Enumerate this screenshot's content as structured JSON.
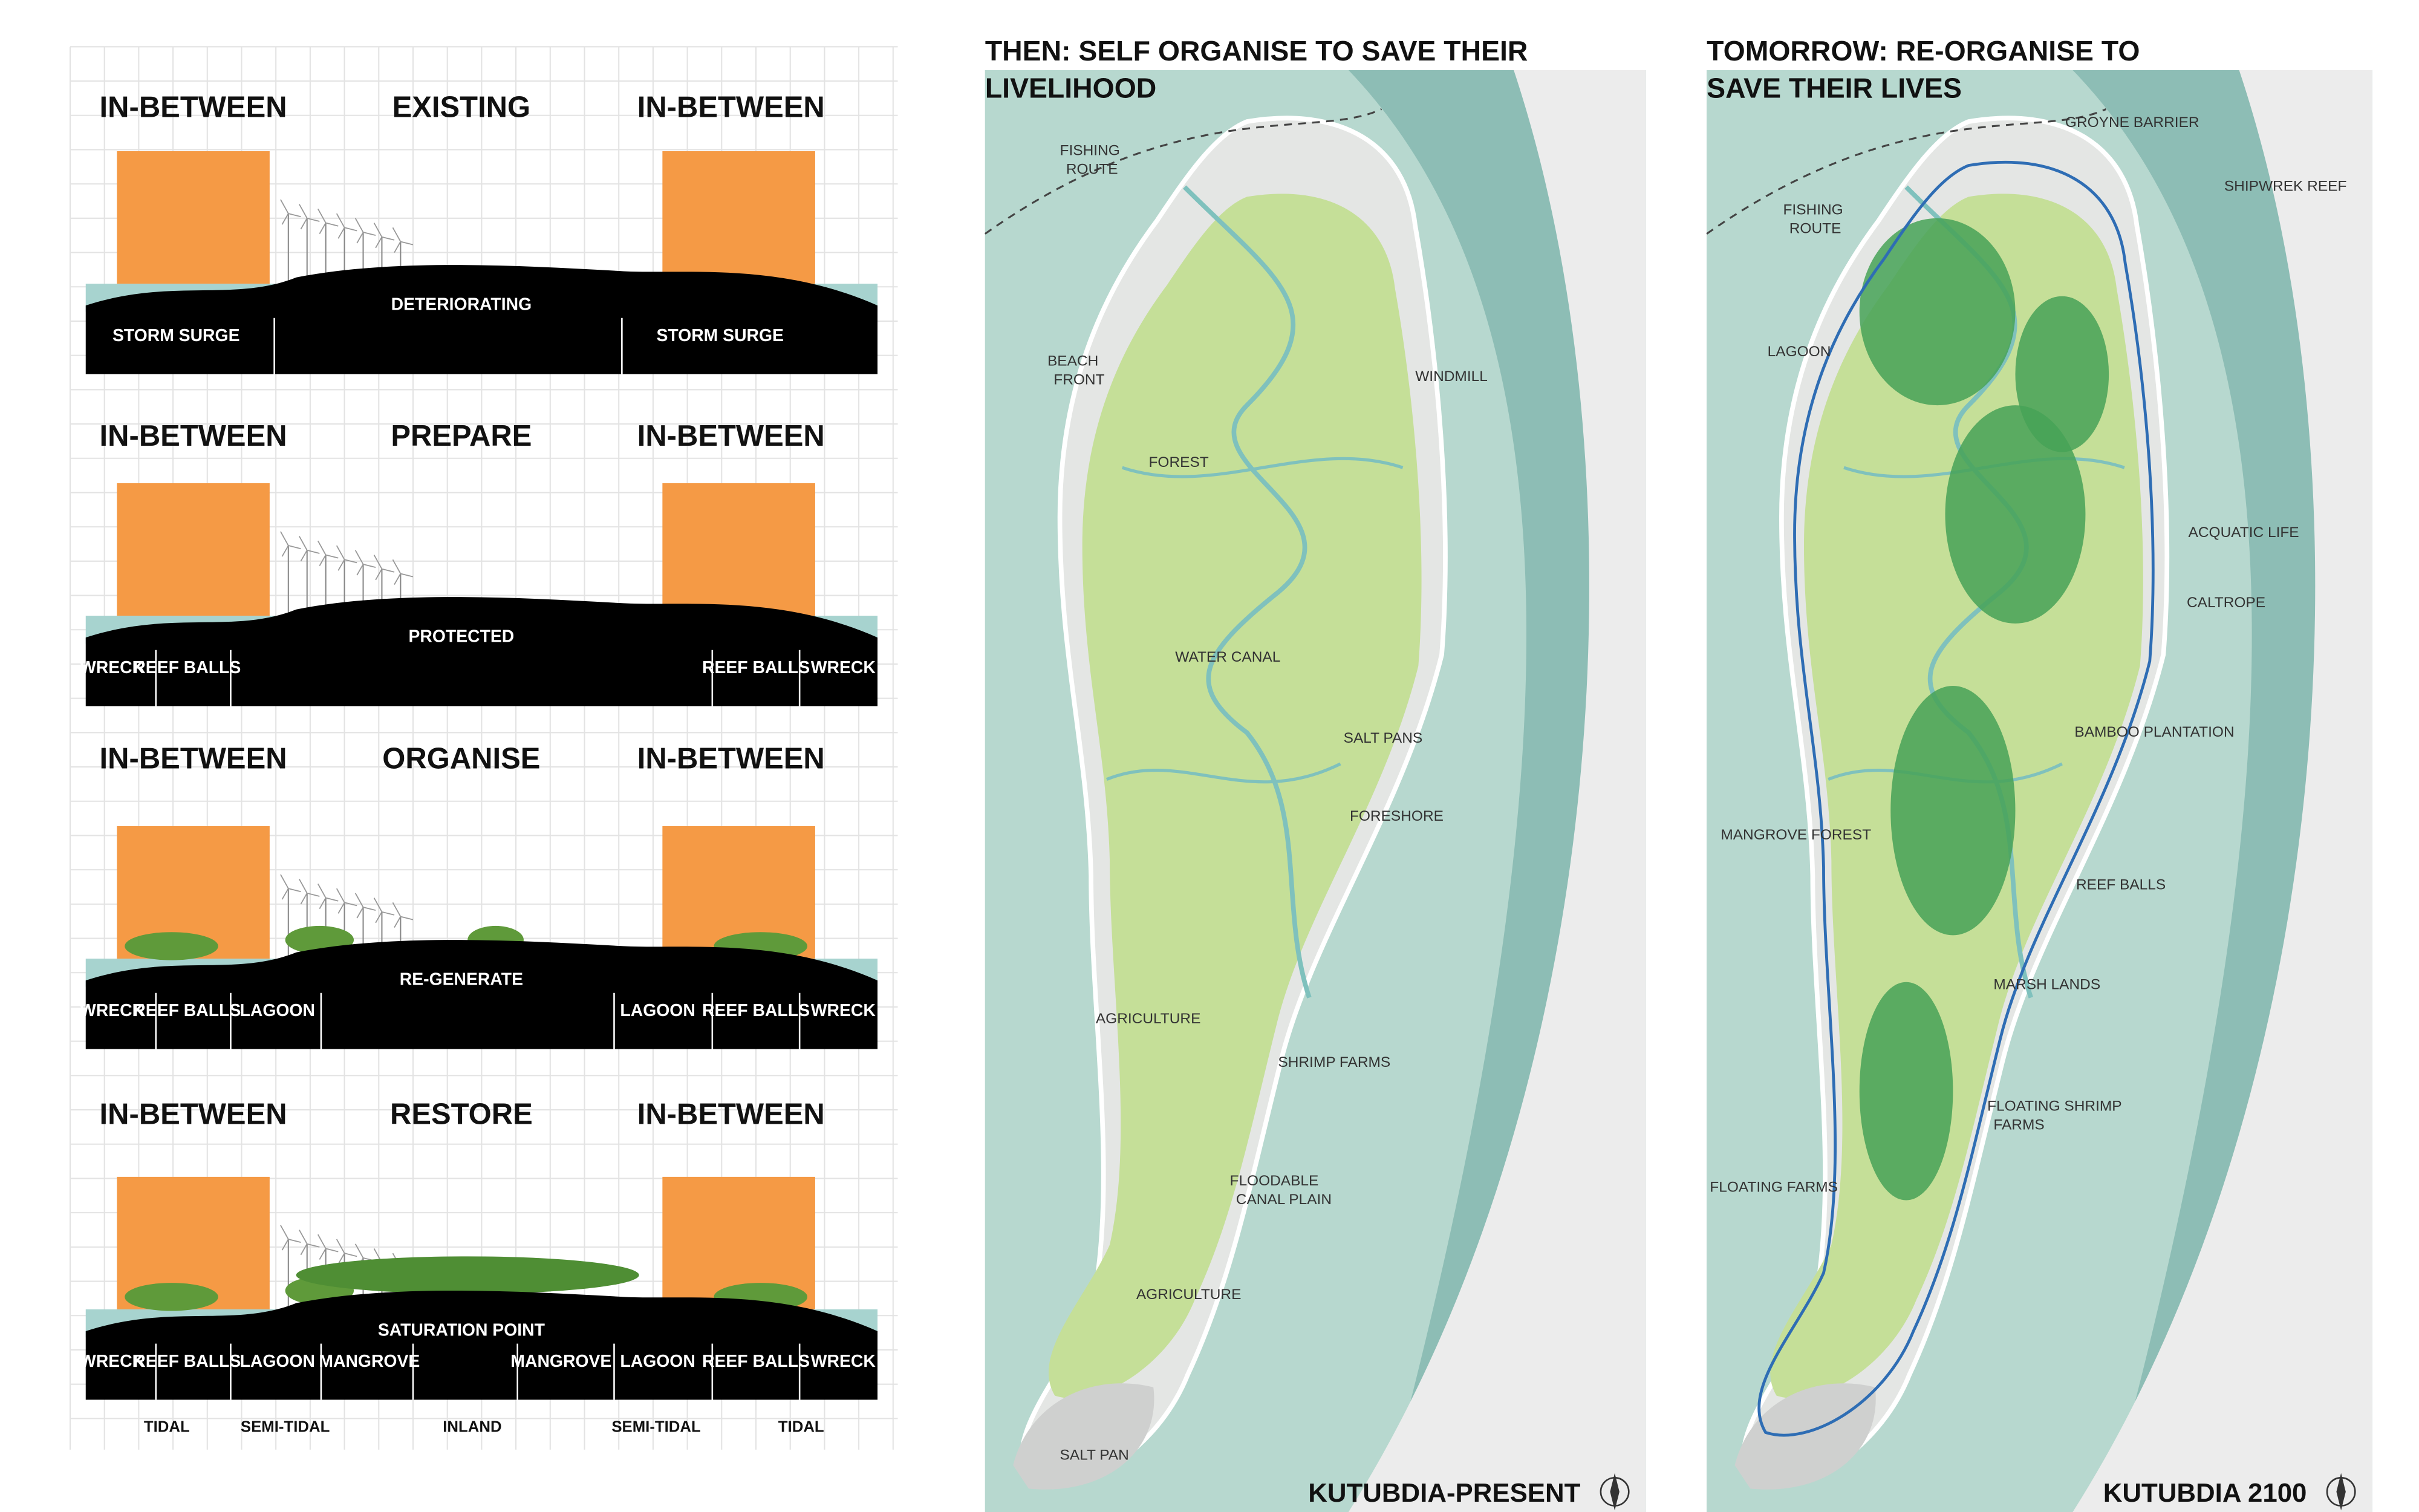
{
  "sections": [
    {
      "left": "IN-BETWEEN",
      "title": "EXISTING",
      "right": "IN-BETWEEN",
      "ground": "DETERIORATING",
      "labels": [
        "STORM SURGE",
        "STORM SURGE"
      ]
    },
    {
      "left": "IN-BETWEEN",
      "title": "PREPARE",
      "right": "IN-BETWEEN",
      "ground": "PROTECTED",
      "labels": [
        "WRECK",
        "REEF BALLS",
        "REEF BALLS",
        "WRECK"
      ]
    },
    {
      "left": "IN-BETWEEN",
      "title": "ORGANISE",
      "right": "IN-BETWEEN",
      "ground": "RE-GENERATE",
      "labels": [
        "WRECK",
        "REEF BALLS",
        "LAGOON",
        "LAGOON",
        "REEF BALLS",
        "WRECK"
      ]
    },
    {
      "left": "IN-BETWEEN",
      "title": "RESTORE",
      "right": "IN-BETWEEN",
      "ground": "SATURATION POINT",
      "labels": [
        "WRECK",
        "REEF BALLS",
        "LAGOON",
        "MANGROVE",
        "MANGROVE",
        "LAGOON",
        "REEF BALLS",
        "WRECK"
      ]
    }
  ],
  "zones": [
    "TIDAL",
    "SEMI-TIDAL",
    "INLAND",
    "SEMI-TIDAL",
    "TIDAL"
  ],
  "maps": [
    {
      "title_lines": [
        "THEN: SELF ORGANISE TO SAVE THEIR",
        "LIVELIHOOD"
      ],
      "labels": [
        {
          "lines": [
            "FISHING",
            "ROUTE"
          ]
        },
        {
          "lines": [
            "BEACH",
            "FRONT"
          ]
        },
        {
          "lines": [
            "WINDMILL"
          ]
        },
        {
          "lines": [
            "FOREST"
          ]
        },
        {
          "lines": [
            "WATER CANAL"
          ]
        },
        {
          "lines": [
            "SALT PANS"
          ]
        },
        {
          "lines": [
            "FORESHORE"
          ]
        },
        {
          "lines": [
            "AGRICULTURE"
          ]
        },
        {
          "lines": [
            "SHRIMP FARMS"
          ]
        },
        {
          "lines": [
            "FLOODABLE",
            "CANAL PLAIN"
          ]
        },
        {
          "lines": [
            "AGRICULTURE"
          ]
        },
        {
          "lines": [
            "SALT PAN"
          ]
        }
      ],
      "footer": "KUTUBDIA-PRESENT"
    },
    {
      "title_lines": [
        "TOMORROW: RE-ORGANISE TO",
        "SAVE THEIR LIVES"
      ],
      "labels": [
        {
          "lines": [
            "GROYNE  BARRIER"
          ]
        },
        {
          "lines": [
            "SHIPWREK REEF"
          ]
        },
        {
          "lines": [
            "FISHING",
            "ROUTE"
          ]
        },
        {
          "lines": [
            "LAGOON"
          ]
        },
        {
          "lines": [
            "ACQUATIC LIFE"
          ]
        },
        {
          "lines": [
            "CALTROPE"
          ]
        },
        {
          "lines": [
            "BAMBOO PLANTATION"
          ]
        },
        {
          "lines": [
            "MANGROVE FOREST"
          ]
        },
        {
          "lines": [
            "REEF BALLS"
          ]
        },
        {
          "lines": [
            "MARSH LANDS"
          ]
        },
        {
          "lines": [
            "FLOATING SHRIMP",
            "FARMS"
          ]
        },
        {
          "lines": [
            "FLOATING FARMS"
          ]
        }
      ],
      "footer": "KUTUBDIA 2100"
    }
  ]
}
